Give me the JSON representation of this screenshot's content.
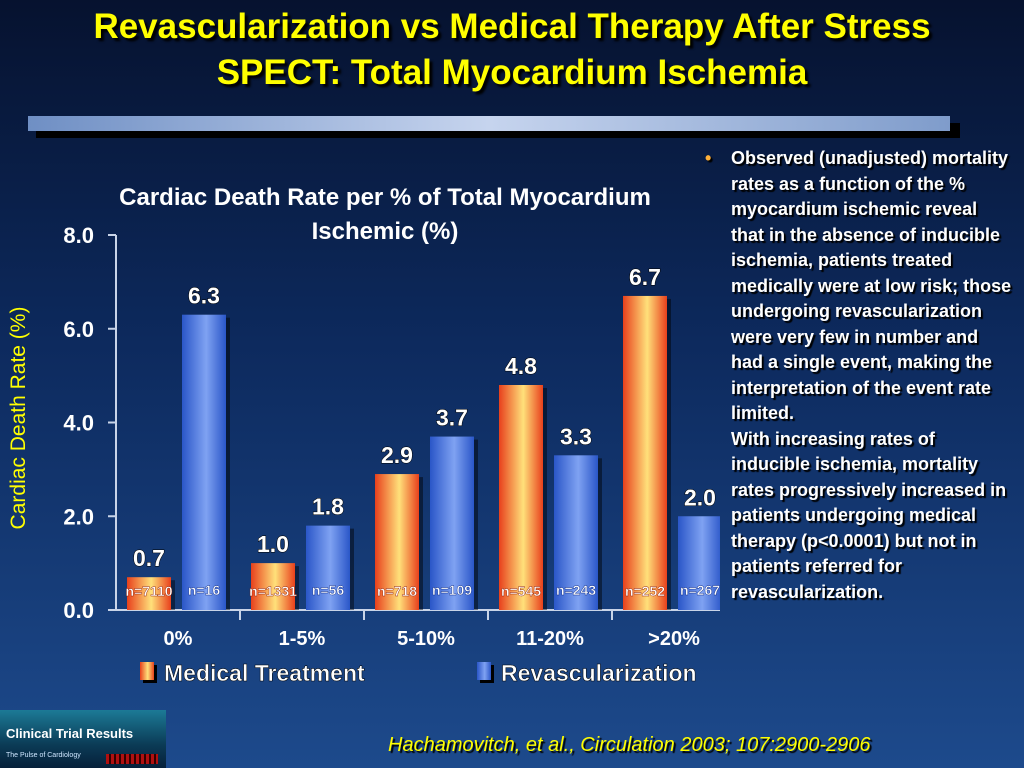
{
  "slide": {
    "title_line1": "Revascularization vs Medical Therapy After Stress",
    "title_line2": "SPECT: Total Myocardium Ischemia",
    "side_paragraph_1": "Observed (unadjusted) mortality rates as a function of the % myocardium ischemic reveal that in the absence of inducible ischemia, patients treated medically were at low risk; those undergoing revascularization were very few in number and had a single event, making the interpretation of the event rate limited.",
    "side_paragraph_2": "With increasing rates of inducible ischemia, mortality rates progressively increased in patients undergoing medical therapy (p<0.0001) but not in patients referred for revascularization.",
    "bullet_glyph": "•",
    "citation": "Hachamovitch, et al., Circulation 2003; 107:2900-2906",
    "logo_title": "Clinical Trial Results",
    "logo_subtitle": "The Pulse of Cardiology"
  },
  "chart_data": {
    "type": "bar",
    "title": "Cardiac Death Rate per % of Total Myocardium Ischemic (%)",
    "ylabel": "Cardiac Death Rate (%)",
    "xlabel": "",
    "ylim": [
      0,
      8
    ],
    "yticks": [
      "0.0",
      "2.0",
      "4.0",
      "6.0",
      "8.0"
    ],
    "categories": [
      "0%",
      "1-5%",
      "5-10%",
      "11-20%",
      ">20%"
    ],
    "series": [
      {
        "name": "Medical Treatment",
        "values": [
          0.7,
          1.0,
          2.9,
          4.8,
          6.7
        ],
        "labels": [
          "0.7",
          "1.0",
          "2.9",
          "4.8",
          "6.7"
        ],
        "n": [
          "n=7110",
          "n=1331",
          "n=718",
          "n=545",
          "n=252"
        ],
        "color": "#e8401c",
        "color_light": "#ffe07a"
      },
      {
        "name": "Revascularization",
        "values": [
          6.3,
          1.8,
          3.7,
          3.3,
          2.0
        ],
        "labels": [
          "6.3",
          "1.8",
          "3.7",
          "3.3",
          "2.0"
        ],
        "n": [
          "n=16",
          "n=56",
          "n=109",
          "n=243",
          "n=267"
        ],
        "color": "#2a56c8",
        "color_light": "#7fa2f2"
      }
    ],
    "legend_position": "bottom",
    "grid": false
  }
}
